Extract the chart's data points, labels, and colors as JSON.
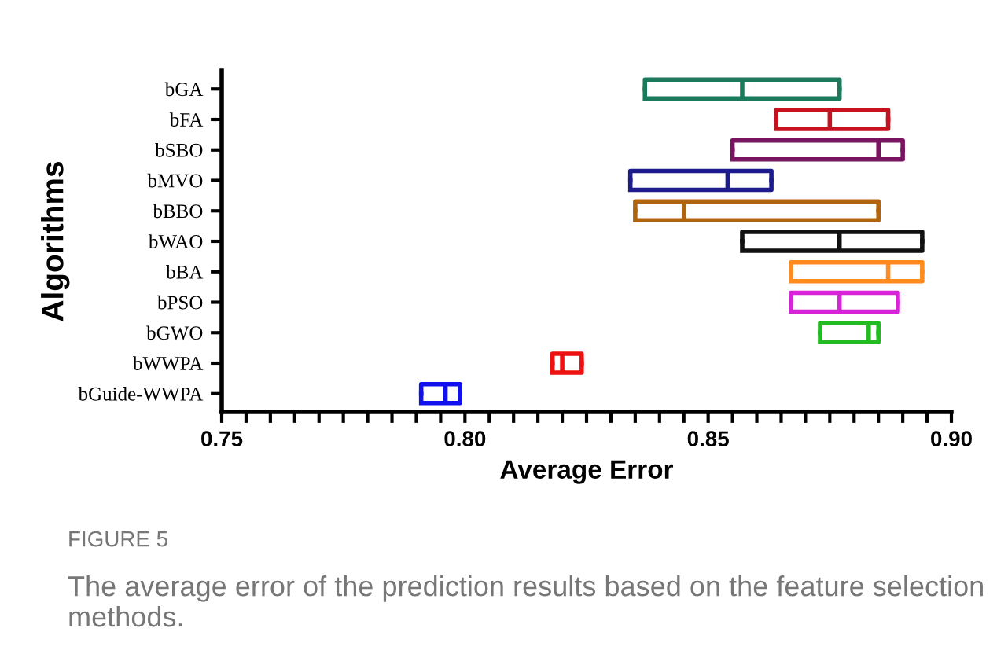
{
  "chart_data": {
    "type": "box",
    "orientation": "horizontal",
    "xlabel": "Average Error",
    "ylabel": "Algorithms",
    "categories": [
      "bGA",
      "bFA",
      "bSBO",
      "bMVO",
      "bBBO",
      "bWAO",
      "bBA",
      "bPSO",
      "bGWO",
      "bWWPA",
      "bGuide-WWPA"
    ],
    "colors": [
      "#1b7a5c",
      "#c8101e",
      "#7b1460",
      "#1c1c8c",
      "#b0640e",
      "#111111",
      "#ff8a1e",
      "#d824d8",
      "#22bb22",
      "#ee1111",
      "#1111ee"
    ],
    "boxes": [
      {
        "low": 0.837,
        "q1": 0.837,
        "median": 0.857,
        "q3": 0.877,
        "high": 0.877
      },
      {
        "low": 0.864,
        "q1": 0.864,
        "median": 0.875,
        "q3": 0.887,
        "high": 0.887
      },
      {
        "low": 0.855,
        "q1": 0.855,
        "median": 0.885,
        "q3": 0.89,
        "high": 0.89
      },
      {
        "low": 0.834,
        "q1": 0.834,
        "median": 0.854,
        "q3": 0.863,
        "high": 0.863
      },
      {
        "low": 0.835,
        "q1": 0.835,
        "median": 0.845,
        "q3": 0.885,
        "high": 0.885
      },
      {
        "low": 0.857,
        "q1": 0.857,
        "median": 0.877,
        "q3": 0.894,
        "high": 0.894
      },
      {
        "low": 0.867,
        "q1": 0.867,
        "median": 0.887,
        "q3": 0.894,
        "high": 0.894
      },
      {
        "low": 0.867,
        "q1": 0.867,
        "median": 0.877,
        "q3": 0.889,
        "high": 0.889
      },
      {
        "low": 0.873,
        "q1": 0.873,
        "median": 0.883,
        "q3": 0.885,
        "high": 0.885
      },
      {
        "low": 0.818,
        "q1": 0.818,
        "median": 0.82,
        "q3": 0.824,
        "high": 0.824
      },
      {
        "low": 0.791,
        "q1": 0.791,
        "median": 0.796,
        "q3": 0.799,
        "high": 0.799
      }
    ],
    "xlim": [
      0.75,
      0.9
    ],
    "xticks": [
      {
        "value": 0.75,
        "label": "0.75"
      },
      {
        "value": 0.755,
        "label": null
      },
      {
        "value": 0.76,
        "label": null
      },
      {
        "value": 0.765,
        "label": null
      },
      {
        "value": 0.77,
        "label": null
      },
      {
        "value": 0.775,
        "label": null
      },
      {
        "value": 0.78,
        "label": null
      },
      {
        "value": 0.785,
        "label": null
      },
      {
        "value": 0.79,
        "label": null
      },
      {
        "value": 0.795,
        "label": null
      },
      {
        "value": 0.8,
        "label": "0.80"
      },
      {
        "value": 0.805,
        "label": null
      },
      {
        "value": 0.81,
        "label": null
      },
      {
        "value": 0.815,
        "label": null
      },
      {
        "value": 0.82,
        "label": null
      },
      {
        "value": 0.825,
        "label": null
      },
      {
        "value": 0.83,
        "label": null
      },
      {
        "value": 0.835,
        "label": null
      },
      {
        "value": 0.84,
        "label": null
      },
      {
        "value": 0.845,
        "label": null
      },
      {
        "value": 0.85,
        "label": "0.85"
      },
      {
        "value": 0.855,
        "label": null
      },
      {
        "value": 0.86,
        "label": null
      },
      {
        "value": 0.865,
        "label": null
      },
      {
        "value": 0.87,
        "label": null
      },
      {
        "value": 0.875,
        "label": null
      },
      {
        "value": 0.88,
        "label": null
      },
      {
        "value": 0.885,
        "label": null
      },
      {
        "value": 0.89,
        "label": null
      },
      {
        "value": 0.895,
        "label": null
      },
      {
        "value": 0.9,
        "label": "0.90"
      }
    ],
    "grid": false,
    "annotations": [
      "FIGURE 5",
      "The average error of the prediction results based on the feature selection methods."
    ]
  }
}
